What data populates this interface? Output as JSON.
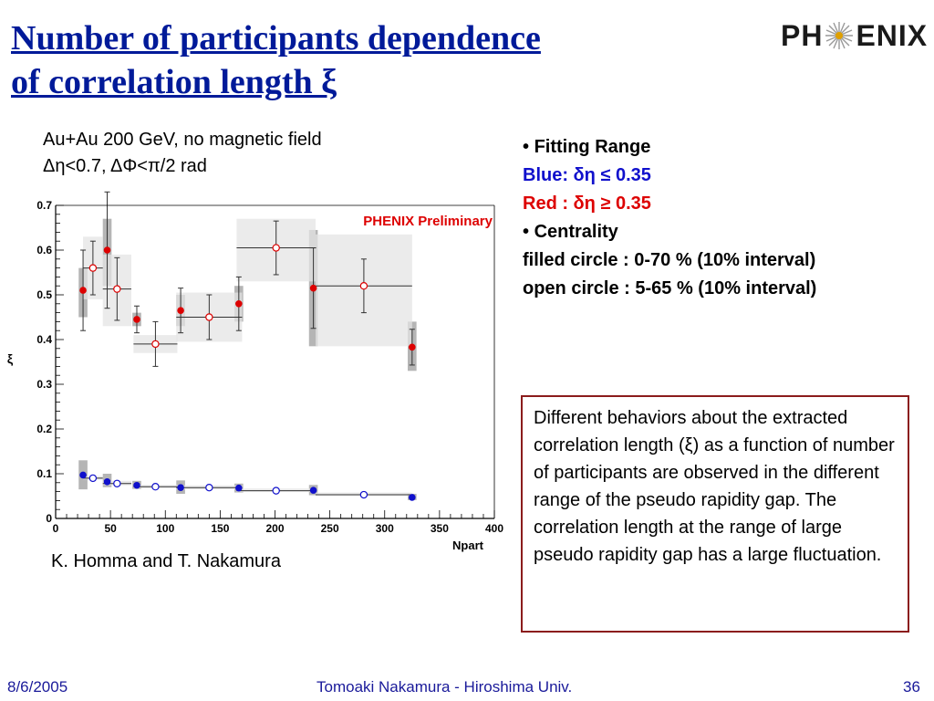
{
  "slide": {
    "title_line1": "Number of participants dependence",
    "title_line2": "of correlation length ξ",
    "logo_left": "PH",
    "logo_right": "ENIX",
    "subtitle_line1": "Au+Au 200 GeV, no magnetic field",
    "subtitle_line2": "Δη<0.7, ΔΦ<π/2 rad",
    "bullet1": "Fitting Range",
    "blue_line": "Blue: δη ≤ 0.35",
    "red_line": "Red : δη ≥ 0.35",
    "bullet2": "Centrality",
    "filled_line": "filled circle : 0-70 % (10% interval)",
    "open_line": "open circle : 5-65 % (10% interval)",
    "box_text": "Different behaviors about the extracted correlation length (ξ) as a function of  number of participants are observed in the different range of the pseudo rapidity gap. The correlation length at the range of large pseudo rapidity gap has a large fluctuation.",
    "credit": "K. Homma and T. Nakamura",
    "footer_date": "8/6/2005",
    "footer_author": "Tomoaki Nakamura - Hiroshima Univ.",
    "footer_page": "36"
  },
  "colors": {
    "title": "#001a99",
    "red": "#dd0000",
    "blue": "#1010cc",
    "box_border": "#8b1c1c",
    "preliminary": "#dd0000",
    "dark_band": "#a8a8a8",
    "light_band": "#e4e4e4"
  },
  "chart_data": {
    "type": "scatter",
    "title": "",
    "annotation": "PHENIX Preliminary",
    "xlabel": "Npart",
    "ylabel": "ξ",
    "xlim": [
      0,
      400
    ],
    "ylim": [
      0,
      0.7
    ],
    "xticks": [
      0,
      50,
      100,
      150,
      200,
      250,
      300,
      350,
      400
    ],
    "yticks": [
      0,
      0.1,
      0.2,
      0.3,
      0.4,
      0.5,
      0.6,
      0.7
    ],
    "grid": false,
    "series": [
      {
        "fit_range": "δη ≥ 0.35",
        "centrality": "0-70 % (10% interval)",
        "color": "red",
        "marker": "filled",
        "x": [
          25,
          47,
          74,
          114,
          167,
          235,
          325
        ],
        "y": [
          0.51,
          0.6,
          0.445,
          0.465,
          0.48,
          0.515,
          0.383
        ],
        "yerr": [
          0.09,
          0.13,
          0.03,
          0.05,
          0.06,
          0.09,
          0.04
        ],
        "xerr": [
          0,
          0,
          0,
          0,
          0,
          0,
          0
        ],
        "sys": [
          [
            0.45,
            0.56
          ],
          [
            0.52,
            0.67
          ],
          [
            0.43,
            0.46
          ],
          [
            0.43,
            0.5
          ],
          [
            0.44,
            0.52
          ],
          [
            0.385,
            0.645
          ],
          [
            0.33,
            0.44
          ]
        ]
      },
      {
        "fit_range": "δη ≥ 0.35",
        "centrality": "5-65 % (10% interval)",
        "color": "red",
        "marker": "open",
        "x": [
          34,
          56,
          91,
          140,
          201,
          281
        ],
        "y": [
          0.56,
          0.513,
          0.39,
          0.45,
          0.605,
          0.52
        ],
        "yerr": [
          0.06,
          0.07,
          0.05,
          0.05,
          0.06,
          0.06
        ],
        "xerr": [
          9,
          13,
          20,
          30,
          36,
          44
        ],
        "sys": [
          [
            0.49,
            0.63
          ],
          [
            0.43,
            0.59
          ],
          [
            0.37,
            0.41
          ],
          [
            0.395,
            0.505
          ],
          [
            0.53,
            0.67
          ],
          [
            0.385,
            0.635
          ]
        ]
      },
      {
        "fit_range": "δη ≤ 0.35",
        "centrality": "0-70 % (10% interval)",
        "color": "blue",
        "marker": "filled",
        "x": [
          25,
          47,
          74,
          114,
          167,
          235,
          325
        ],
        "y": [
          0.097,
          0.082,
          0.074,
          0.069,
          0.068,
          0.063,
          0.047
        ],
        "yerr": [
          0,
          0,
          0,
          0,
          0,
          0,
          0
        ],
        "xerr": [
          0,
          0,
          0,
          0,
          0,
          0,
          0
        ],
        "sys": [
          [
            0.065,
            0.13
          ],
          [
            0.07,
            0.1
          ],
          [
            0.066,
            0.084
          ],
          [
            0.055,
            0.085
          ],
          [
            0.058,
            0.078
          ],
          [
            0.052,
            0.075
          ],
          [
            0.041,
            0.055
          ]
        ]
      },
      {
        "fit_range": "δη ≤ 0.35",
        "centrality": "5-65 % (10% interval)",
        "color": "blue",
        "marker": "open",
        "x": [
          34,
          56,
          91,
          140,
          201,
          281
        ],
        "y": [
          0.09,
          0.078,
          0.071,
          0.069,
          0.062,
          0.053
        ],
        "yerr": [
          0,
          0,
          0,
          0,
          0,
          0
        ],
        "xerr": [
          9,
          13,
          20,
          30,
          36,
          44
        ],
        "sys": [
          [
            0.087,
            0.095
          ],
          [
            0.074,
            0.084
          ],
          [
            0.068,
            0.075
          ],
          [
            0.065,
            0.074
          ],
          [
            0.059,
            0.067
          ],
          [
            0.05,
            0.058
          ]
        ]
      }
    ]
  }
}
